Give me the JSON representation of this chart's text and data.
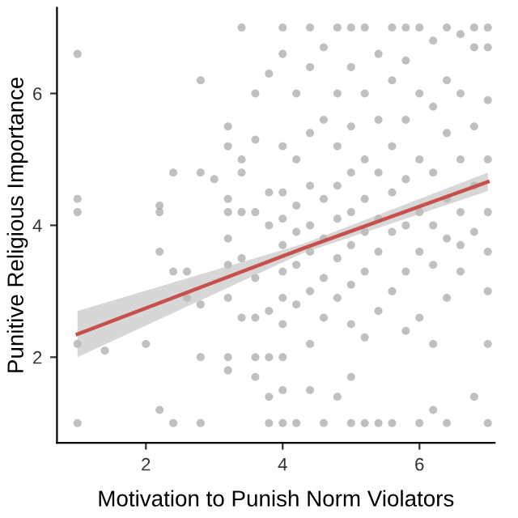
{
  "chart_data": {
    "type": "scatter",
    "xlabel": "Motivation to Punish Norm Violators",
    "ylabel": "Punitive Religious Importance",
    "xlim": [
      0.7,
      7.1
    ],
    "ylim": [
      0.7,
      7.3
    ],
    "xticks": [
      2,
      4,
      6
    ],
    "yticks": [
      2,
      4,
      6
    ],
    "grid": false,
    "series": [
      {
        "marker": "circle",
        "color": "#8c8c8c",
        "x": [
          1,
          1,
          1,
          1,
          1,
          1.4,
          2,
          2.2,
          2.4,
          2.2,
          2.2,
          2.2,
          2.4,
          2.6,
          2.6,
          2.8,
          2.8,
          2.8,
          2.4,
          2.8,
          2.8,
          3,
          3.2,
          3.2,
          3.2,
          3.2,
          3.4,
          3.4,
          3.4,
          3.4,
          3.6,
          3.6,
          3.6,
          3.8,
          3.8,
          3.8,
          3.2,
          3.4,
          3.6,
          3.6,
          3.8,
          3.8,
          3.6,
          3.8,
          3.8,
          3.2,
          3.2,
          3.6,
          3.4,
          3.2,
          3.2,
          4,
          4,
          4,
          4,
          4,
          4,
          4,
          4,
          4,
          4,
          4,
          4,
          4.2,
          4.2,
          4.2,
          4.2,
          4.2,
          4.2,
          4.2,
          4.4,
          4.4,
          4.4,
          4.4,
          4.4,
          4.4,
          4.4,
          4.4,
          4.4,
          4.6,
          4.6,
          4.6,
          4.6,
          4.6,
          4.6,
          4.6,
          4.8,
          4.8,
          4.8,
          4.8,
          4.8,
          4.8,
          4.8,
          4.8,
          5,
          5,
          5,
          5,
          5,
          5,
          5,
          5,
          5,
          5,
          5.2,
          5.2,
          5.2,
          5.2,
          5.2,
          5.2,
          5.2,
          5.2,
          5.4,
          5.4,
          5.4,
          5.4,
          5.4,
          5.4,
          5.4,
          5.6,
          5.6,
          5.6,
          5.6,
          5.6,
          5.6,
          5.6,
          5.8,
          5.8,
          5.8,
          5.8,
          5.8,
          5.8,
          5.8,
          6,
          6,
          6,
          6,
          6,
          6,
          6,
          6.2,
          6.2,
          6.2,
          6.2,
          6.2,
          6.2,
          6.2,
          6.4,
          6.4,
          6.4,
          6.4,
          6.4,
          6.4,
          6.4,
          6.6,
          6.6,
          6.6,
          6.6,
          6.6,
          6.6,
          6.8,
          6.8,
          6.8,
          6.8,
          6.8,
          6.8,
          7,
          7,
          7,
          7,
          7,
          7,
          7,
          7,
          7
        ],
        "values": [
          6.6,
          4.4,
          4.2,
          2.2,
          1.0,
          2.1,
          2.2,
          1.2,
          1.0,
          4.2,
          4.3,
          3.6,
          3.3,
          3.3,
          2.9,
          1.0,
          2.0,
          2.8,
          4.8,
          4.8,
          6.2,
          4.7,
          4.4,
          4.2,
          5.2,
          5.5,
          5.0,
          4.8,
          7.0,
          4.2,
          6.0,
          5.3,
          4.2,
          6.3,
          4.5,
          4.0,
          3.8,
          3.5,
          3.2,
          2.6,
          2.7,
          2.0,
          1.7,
          1.4,
          1.0,
          2.0,
          1.8,
          2.0,
          2.6,
          3.4,
          2.9,
          7,
          6.6,
          5.2,
          4.5,
          4.1,
          3.7,
          3.3,
          2.9,
          2.5,
          2.0,
          1.5,
          1.0,
          6.0,
          5.0,
          4.3,
          3.9,
          3.4,
          2.8,
          1.0,
          7,
          6.4,
          5.4,
          4.6,
          4.0,
          3.6,
          3.0,
          2.2,
          1.5,
          6.7,
          5.6,
          4.4,
          3.8,
          3.2,
          2.6,
          1.0,
          7,
          6.0,
          5.2,
          4.6,
          4.1,
          3.5,
          2.9,
          1.4,
          7,
          6.4,
          5.5,
          4.8,
          4.2,
          3.7,
          3.1,
          2.5,
          1.7,
          1.0,
          7,
          6.0,
          5.0,
          4.4,
          3.9,
          3.3,
          2.3,
          1.0,
          6.6,
          5.6,
          4.8,
          4.1,
          3.6,
          2.7,
          1.0,
          7,
          6.2,
          5.2,
          4.5,
          3.9,
          3.0,
          1.0,
          7,
          6.5,
          5.6,
          4.7,
          4.0,
          3.3,
          2.4,
          7,
          6.0,
          5.0,
          4.2,
          3.6,
          2.6,
          1.0,
          6.8,
          5.8,
          4.8,
          4.0,
          3.4,
          2.2,
          1.2,
          7,
          6.2,
          5.4,
          4.4,
          3.8,
          2.9,
          1.0,
          6.9,
          6.0,
          5.0,
          4.2,
          3.7,
          3.3,
          7,
          6.7,
          5.5,
          4.6,
          3.9,
          1.4,
          7,
          6.7,
          5.9,
          5.0,
          4.2,
          3.6,
          3.0,
          2.2,
          1.0
        ]
      },
      {
        "type": "line",
        "color": "#c8504a",
        "x": [
          1,
          4.3,
          7
        ],
        "values": [
          2.35,
          3.65,
          4.66
        ],
        "lower": [
          2.0,
          3.58,
          4.52
        ],
        "upper": [
          2.7,
          3.72,
          4.8
        ]
      }
    ]
  }
}
